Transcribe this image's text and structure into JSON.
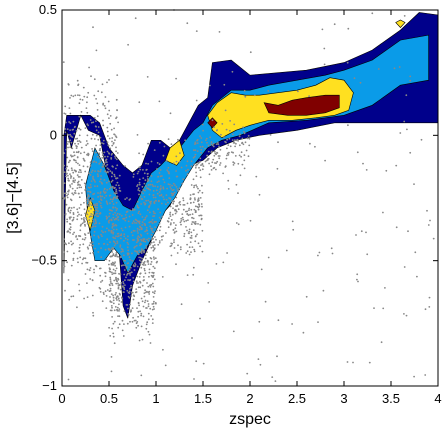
{
  "chart_data": {
    "type": "scatter",
    "subtype": "density contours over scatter points",
    "title": "",
    "xlabel": "zspec",
    "ylabel": "[3.6]−[4.5]",
    "xlim": [
      0,
      4
    ],
    "ylim": [
      -1,
      0.5
    ],
    "x_ticks": [
      0,
      0.5,
      1,
      1.5,
      2,
      2.5,
      3,
      3.5,
      4
    ],
    "x_tick_labels": [
      "0",
      "0.5",
      "1",
      "1.5",
      "2",
      "2.5",
      "3",
      "3.5",
      "4"
    ],
    "y_ticks": [
      -1,
      -0.5,
      0,
      0.5
    ],
    "y_tick_labels": [
      "−1",
      "−0.5",
      "0",
      "0.5"
    ],
    "grid": false,
    "legend": "none",
    "scatter_color": "#888888",
    "contour_colors": {
      "level1": "#00008B",
      "level2": "#0A9BE8",
      "level3": "#FFE020",
      "level4": "#800000"
    },
    "contour_levels": [
      {
        "level": 1,
        "color": "#00008B",
        "polygons": [
          [
            [
              0.02,
              -0.55
            ],
            [
              0.05,
              0.02
            ],
            [
              0.1,
              -0.05
            ],
            [
              0.2,
              0.08
            ],
            [
              0.28,
              0.02
            ],
            [
              0.4,
              0.0
            ],
            [
              0.5,
              -0.2
            ],
            [
              0.6,
              -0.42
            ],
            [
              0.65,
              -0.68
            ],
            [
              0.7,
              -0.73
            ],
            [
              0.75,
              -0.6
            ],
            [
              0.85,
              -0.5
            ],
            [
              0.95,
              -0.42
            ],
            [
              1.05,
              -0.32
            ],
            [
              1.15,
              -0.28
            ],
            [
              1.25,
              -0.2
            ],
            [
              1.35,
              -0.12
            ],
            [
              1.5,
              -0.1
            ],
            [
              1.65,
              -0.05
            ],
            [
              1.85,
              -0.02
            ],
            [
              2.1,
              0.0
            ],
            [
              2.5,
              0.02
            ],
            [
              2.9,
              0.05
            ],
            [
              3.3,
              0.05
            ],
            [
              3.6,
              0.05
            ],
            [
              4.0,
              0.05
            ],
            [
              4.0,
              0.48
            ],
            [
              3.8,
              0.49
            ],
            [
              3.6,
              0.42
            ],
            [
              3.3,
              0.34
            ],
            [
              3.0,
              0.29
            ],
            [
              2.6,
              0.26
            ],
            [
              2.3,
              0.25
            ],
            [
              2.0,
              0.24
            ],
            [
              1.8,
              0.3
            ],
            [
              1.6,
              0.29
            ],
            [
              1.55,
              0.15
            ],
            [
              1.45,
              0.12
            ],
            [
              1.35,
              0.05
            ],
            [
              1.25,
              -0.02
            ],
            [
              1.15,
              -0.05
            ],
            [
              1.05,
              -0.02
            ],
            [
              0.95,
              -0.02
            ],
            [
              0.85,
              -0.12
            ],
            [
              0.75,
              -0.15
            ],
            [
              0.65,
              -0.12
            ],
            [
              0.5,
              -0.05
            ],
            [
              0.4,
              0.05
            ],
            [
              0.3,
              0.08
            ],
            [
              0.2,
              0.08
            ],
            [
              0.1,
              0.08
            ],
            [
              0.05,
              0.08
            ],
            [
              0.02,
              0.0
            ]
          ]
        ]
      },
      {
        "level": 2,
        "color": "#0A9BE8",
        "polygons": [
          [
            [
              0.25,
              -0.2
            ],
            [
              0.35,
              -0.05
            ],
            [
              0.45,
              -0.12
            ],
            [
              0.55,
              -0.22
            ],
            [
              0.65,
              -0.28
            ],
            [
              0.75,
              -0.3
            ],
            [
              0.85,
              -0.22
            ],
            [
              0.95,
              -0.15
            ],
            [
              1.05,
              -0.12
            ],
            [
              1.15,
              -0.08
            ],
            [
              1.25,
              -0.05
            ],
            [
              1.4,
              0.02
            ],
            [
              1.5,
              0.05
            ],
            [
              1.6,
              0.12
            ],
            [
              1.8,
              0.18
            ],
            [
              2.0,
              0.18
            ],
            [
              2.2,
              0.2
            ],
            [
              2.5,
              0.22
            ],
            [
              2.8,
              0.24
            ],
            [
              3.0,
              0.26
            ],
            [
              3.3,
              0.3
            ],
            [
              3.6,
              0.38
            ],
            [
              3.9,
              0.4
            ],
            [
              3.9,
              0.22
            ],
            [
              3.6,
              0.2
            ],
            [
              3.3,
              0.12
            ],
            [
              3.0,
              0.08
            ],
            [
              2.6,
              0.06
            ],
            [
              2.2,
              0.05
            ],
            [
              1.9,
              0.0
            ],
            [
              1.7,
              -0.02
            ],
            [
              1.55,
              -0.05
            ],
            [
              1.4,
              -0.12
            ],
            [
              1.3,
              -0.18
            ],
            [
              1.2,
              -0.25
            ],
            [
              1.1,
              -0.3
            ],
            [
              1.0,
              -0.38
            ],
            [
              0.9,
              -0.45
            ],
            [
              0.8,
              -0.48
            ],
            [
              0.7,
              -0.55
            ],
            [
              0.62,
              -0.48
            ],
            [
              0.55,
              -0.45
            ],
            [
              0.45,
              -0.5
            ],
            [
              0.35,
              -0.5
            ],
            [
              0.28,
              -0.35
            ]
          ]
        ]
      },
      {
        "level": 3,
        "color": "#FFE020",
        "polygons": [
          [
            [
              1.55,
              0.08
            ],
            [
              1.65,
              0.13
            ],
            [
              1.8,
              0.17
            ],
            [
              1.95,
              0.16
            ],
            [
              2.1,
              0.16
            ],
            [
              2.3,
              0.17
            ],
            [
              2.5,
              0.18
            ],
            [
              2.7,
              0.2
            ],
            [
              2.85,
              0.23
            ],
            [
              3.0,
              0.22
            ],
            [
              3.1,
              0.17
            ],
            [
              3.05,
              0.1
            ],
            [
              2.9,
              0.08
            ],
            [
              2.7,
              0.07
            ],
            [
              2.45,
              0.06
            ],
            [
              2.2,
              0.06
            ],
            [
              2.0,
              0.04
            ],
            [
              1.85,
              0.02
            ],
            [
              1.7,
              -0.01
            ],
            [
              1.6,
              0.02
            ]
          ],
          [
            [
              0.25,
              -0.32
            ],
            [
              0.3,
              -0.25
            ],
            [
              0.35,
              -0.3
            ],
            [
              0.3,
              -0.38
            ]
          ],
          [
            [
              1.1,
              -0.1
            ],
            [
              1.15,
              -0.05
            ],
            [
              1.25,
              -0.02
            ],
            [
              1.3,
              -0.08
            ],
            [
              1.22,
              -0.12
            ]
          ],
          [
            [
              3.55,
              0.45
            ],
            [
              3.6,
              0.46
            ],
            [
              3.65,
              0.45
            ],
            [
              3.6,
              0.43
            ]
          ]
        ]
      },
      {
        "level": 4,
        "color": "#800000",
        "polygons": [
          [
            [
              2.15,
              0.13
            ],
            [
              2.3,
              0.12
            ],
            [
              2.45,
              0.14
            ],
            [
              2.6,
              0.15
            ],
            [
              2.8,
              0.16
            ],
            [
              2.95,
              0.16
            ],
            [
              2.95,
              0.11
            ],
            [
              2.8,
              0.09
            ],
            [
              2.6,
              0.08
            ],
            [
              2.4,
              0.08
            ],
            [
              2.2,
              0.09
            ]
          ],
          [
            [
              1.55,
              0.05
            ],
            [
              1.6,
              0.07
            ],
            [
              1.65,
              0.05
            ],
            [
              1.6,
              0.03
            ]
          ]
        ]
      }
    ],
    "scatter_regions": [
      {
        "x": [
          0.02,
          0.6
        ],
        "y": [
          -0.8,
          0.35
        ]
      },
      {
        "x": [
          0.5,
          1.0
        ],
        "y": [
          -0.95,
          -0.1
        ]
      },
      {
        "x": [
          0.8,
          1.5
        ],
        "y": [
          -0.6,
          0.05
        ]
      },
      {
        "x": [
          1.4,
          2.0
        ],
        "y": [
          -0.2,
          0.1
        ]
      },
      {
        "x": [
          0.0,
          4.0
        ],
        "y": [
          -1.0,
          0.5
        ]
      }
    ]
  }
}
